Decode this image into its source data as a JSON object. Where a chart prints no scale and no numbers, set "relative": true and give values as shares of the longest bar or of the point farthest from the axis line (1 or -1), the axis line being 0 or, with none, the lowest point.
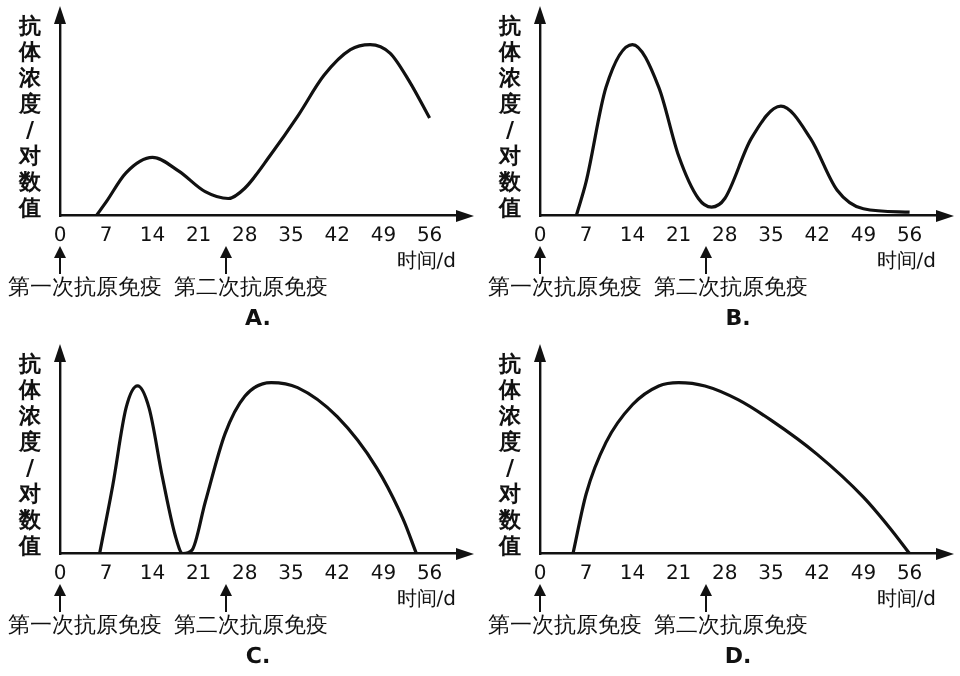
{
  "chart_data": [
    {
      "type": "line",
      "title": "A.",
      "xlabel": "时间/d",
      "ylabel": "抗体浓度/对数值",
      "relative": true,
      "tick_labels": "x",
      "xlim": [
        0,
        60
      ],
      "xticks": [
        0,
        7,
        14,
        21,
        28,
        35,
        42,
        49,
        56
      ],
      "grid": false,
      "legend": false,
      "marker": "none",
      "line_style": "solid",
      "annotations": [
        "第一次抗原免疫",
        "第二次抗原免疫"
      ],
      "x": [
        5.5,
        7,
        10,
        14,
        18,
        22,
        25.5,
        28,
        32,
        36,
        40,
        44,
        47,
        50,
        53,
        56
      ],
      "series": [
        {
          "color": "#111111",
          "values": [
            0,
            0.08,
            0.25,
            0.34,
            0.26,
            0.14,
            0.1,
            0.16,
            0.36,
            0.58,
            0.82,
            0.97,
            1,
            0.95,
            0.78,
            0.57
          ]
        }
      ]
    },
    {
      "type": "line",
      "title": "B.",
      "xlabel": "时间/d",
      "ylabel": "抗体浓度/对数值",
      "relative": true,
      "tick_labels": "x",
      "xlim": [
        0,
        60
      ],
      "xticks": [
        0,
        7,
        14,
        21,
        28,
        35,
        42,
        49,
        56
      ],
      "grid": false,
      "legend": false,
      "marker": "none",
      "line_style": "solid",
      "annotations": [
        "第一次抗原免疫",
        "第二次抗原免疫"
      ],
      "x": [
        5.5,
        7,
        10,
        14,
        18,
        21,
        24,
        26,
        28,
        32,
        36.5,
        41,
        45,
        49,
        56
      ],
      "series": [
        {
          "color": "#111111",
          "values": [
            0,
            0.2,
            0.75,
            1,
            0.75,
            0.35,
            0.1,
            0.05,
            0.1,
            0.45,
            0.64,
            0.45,
            0.15,
            0.04,
            0.02
          ]
        }
      ]
    },
    {
      "type": "line",
      "title": "C.",
      "xlabel": "时间/d",
      "ylabel": "抗体浓度/对数值",
      "relative": true,
      "tick_labels": "x",
      "xlim": [
        0,
        60
      ],
      "xticks": [
        0,
        7,
        14,
        21,
        28,
        35,
        42,
        49,
        56
      ],
      "grid": false,
      "legend": false,
      "marker": "none",
      "line_style": "solid",
      "annotations": [
        "第一次抗原免疫",
        "第二次抗原免疫"
      ],
      "x": [
        6,
        8,
        10,
        11.75,
        13.5,
        15.5,
        17.5,
        18.6,
        20,
        22,
        25,
        28,
        32,
        36,
        42,
        48,
        52,
        54
      ],
      "series": [
        {
          "color": "#111111",
          "values": [
            0,
            0.4,
            0.85,
            0.98,
            0.85,
            0.45,
            0.1,
            0,
            0.02,
            0.3,
            0.7,
            0.92,
            1,
            0.97,
            0.8,
            0.5,
            0.2,
            0
          ]
        }
      ]
    },
    {
      "type": "line",
      "title": "D.",
      "xlabel": "时间/d",
      "ylabel": "抗体浓度/对数值",
      "relative": true,
      "tick_labels": "x",
      "xlim": [
        0,
        60
      ],
      "xticks": [
        0,
        7,
        14,
        21,
        28,
        35,
        42,
        49,
        56
      ],
      "grid": false,
      "legend": false,
      "marker": "none",
      "line_style": "solid",
      "annotations": [
        "第一次抗原免疫",
        "第二次抗原免疫"
      ],
      "x": [
        5,
        7,
        10,
        14,
        18,
        21,
        25,
        30,
        35,
        42,
        49,
        53,
        56
      ],
      "series": [
        {
          "color": "#111111",
          "values": [
            0,
            0.35,
            0.65,
            0.87,
            0.98,
            1,
            0.98,
            0.9,
            0.78,
            0.58,
            0.33,
            0.15,
            0
          ]
        }
      ]
    }
  ]
}
